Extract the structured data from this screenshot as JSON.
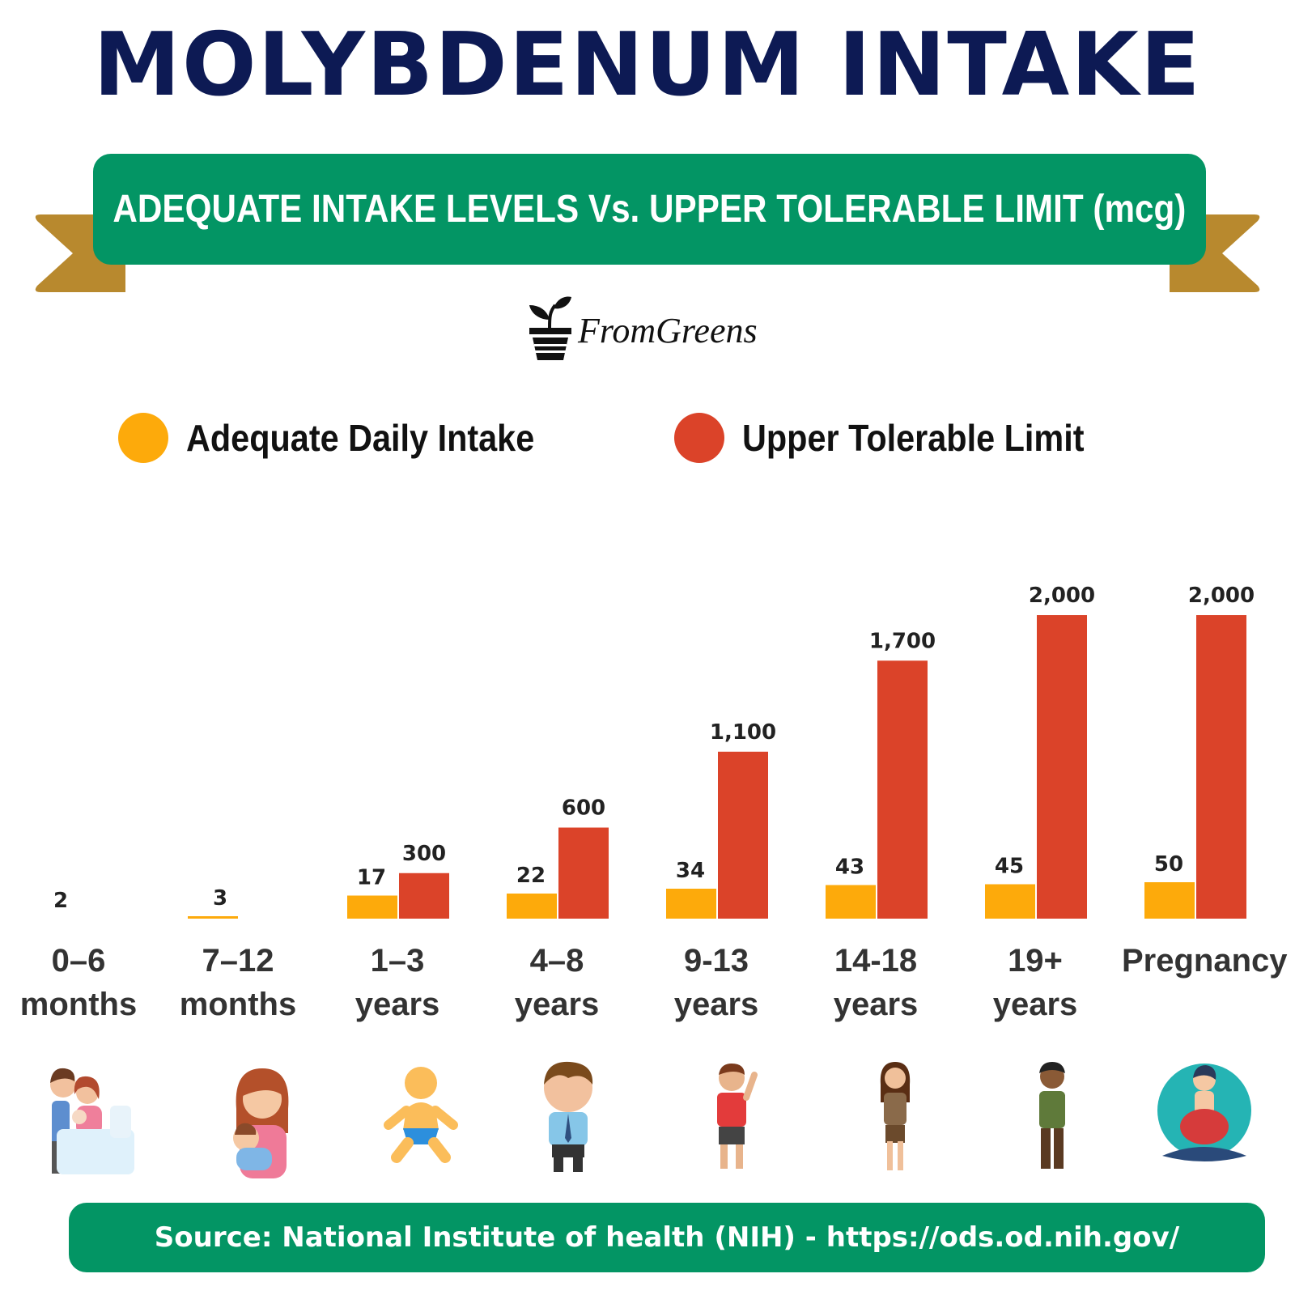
{
  "title": "MOLYBDENUM INTAKE",
  "subtitle": "ADEQUATE INTAKE LEVELS Vs. UPPER TOLERABLE LIMIT (mcg)",
  "brand": "FromGreens",
  "source": "Source: National Institute of health (NIH) - https://ods.od.nih.gov/",
  "colors": {
    "title": "#0d1a54",
    "banner": "#039564",
    "ribbon": "#b8892e",
    "adequate": "#fdaa0b",
    "upper": "#db4329",
    "value_text": "#222222"
  },
  "chart_data": {
    "type": "bar",
    "categories": [
      [
        "0–6",
        "months"
      ],
      [
        "7–12",
        "months"
      ],
      [
        "1–3",
        "years"
      ],
      [
        "4–8",
        "years"
      ],
      [
        "9-13",
        "years"
      ],
      [
        "14-18",
        "years"
      ],
      [
        "19+",
        "years"
      ],
      [
        "Pregnancy"
      ]
    ],
    "series": [
      {
        "name": "Adequate Daily Intake",
        "values": [
          2,
          3,
          17,
          22,
          34,
          43,
          45,
          50
        ],
        "labels": [
          "2",
          "3",
          "17",
          "22",
          "34",
          "43",
          "45",
          "50"
        ]
      },
      {
        "name": "Upper Tolerable Limit",
        "values": [
          null,
          null,
          300,
          600,
          1100,
          1700,
          2000,
          2000
        ],
        "labels": [
          "",
          "",
          "300",
          "600",
          "1,100",
          "1,700",
          "2,000",
          "2,000"
        ]
      }
    ],
    "legend": "top",
    "grid": false
  },
  "figures": [
    "parents-newborn-icon",
    "mother-baby-icon",
    "toddler-icon",
    "child-icon",
    "boy-icon",
    "teen-girl-icon",
    "adult-man-icon",
    "pregnant-woman-icon"
  ]
}
